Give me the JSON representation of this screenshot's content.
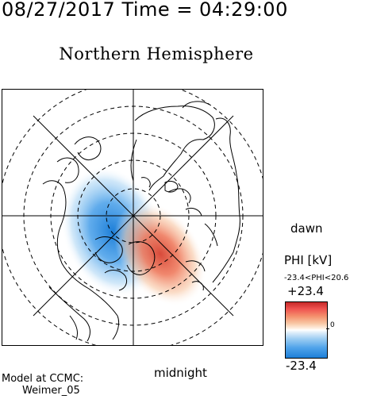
{
  "header": {
    "timestamp": "08/27/2017 Time = 04:29:00",
    "hemisphere": "Northern Hemisphere"
  },
  "map": {
    "orientation_labels": {
      "right": "dawn",
      "bottom": "midnight"
    }
  },
  "colorbar": {
    "quantity_label": "PHI [kV]",
    "range_text": "-23.4<PHI<20.6",
    "max_label": "+23.4",
    "min_label": "-23.4",
    "zero_label": "0",
    "colors": {
      "positive": "#c62828",
      "neutral": "#ffffff",
      "negative": "#1e7fd8"
    }
  },
  "credit": {
    "line1": "Model at CCMC:",
    "line2": "Weimer_05"
  }
}
